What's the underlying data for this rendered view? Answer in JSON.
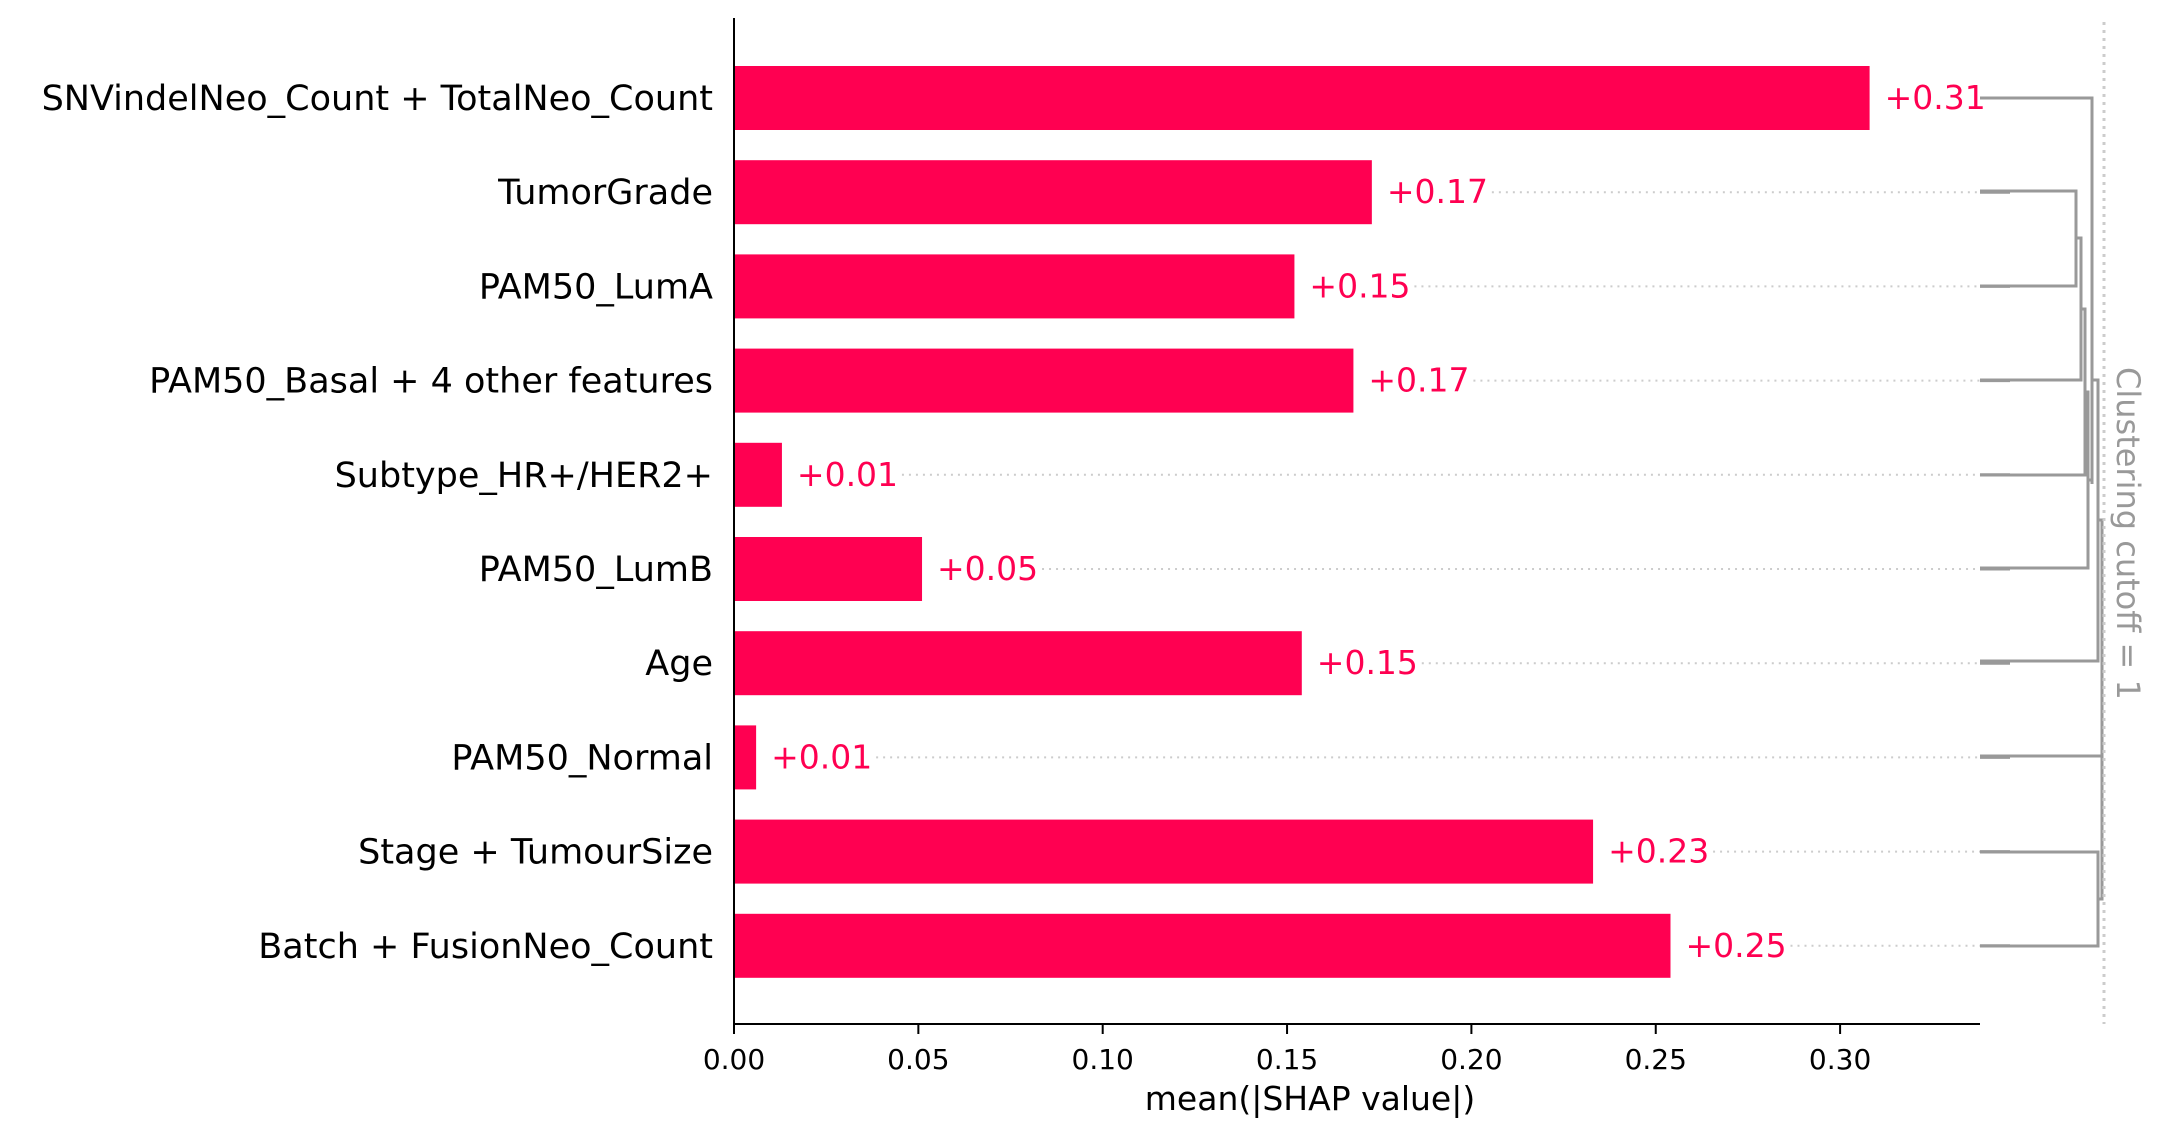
{
  "chart_data": {
    "type": "bar",
    "orientation": "horizontal",
    "title": "",
    "xlabel": "mean(|SHAP value|)",
    "ylabel": "",
    "xlim": [
      0,
      0.34
    ],
    "xticks": [
      "0.00",
      "0.05",
      "0.10",
      "0.15",
      "0.20",
      "0.25",
      "0.30"
    ],
    "xtick_values": [
      0,
      0.05,
      0.1,
      0.15,
      0.2,
      0.25,
      0.3
    ],
    "categories": [
      "SNVindelNeo_Count + TotalNeo_Count",
      "TumorGrade",
      "PAM50_LumA",
      "PAM50_Basal + 4 other features",
      "Subtype_HR+/HER2+",
      "PAM50_LumB",
      "Age",
      "PAM50_Normal",
      "Stage + TumourSize",
      "Batch + FusionNeo_Count"
    ],
    "values": [
      0.308,
      0.173,
      0.152,
      0.168,
      0.013,
      0.051,
      0.154,
      0.006,
      0.233,
      0.254
    ],
    "value_labels": [
      "+0.31",
      "+0.17",
      "+0.15",
      "+0.17",
      "+0.01",
      "+0.05",
      "+0.15",
      "+0.01",
      "+0.23",
      "+0.25"
    ],
    "cutoff_label": "Clustering cutoff = 1",
    "grid": false,
    "colors": {
      "bar": "#ff0051",
      "dendrogram": "#999999",
      "cutoff_line": "#cccccc",
      "guide_dots": "#cccccc",
      "axis": "#000000"
    }
  }
}
